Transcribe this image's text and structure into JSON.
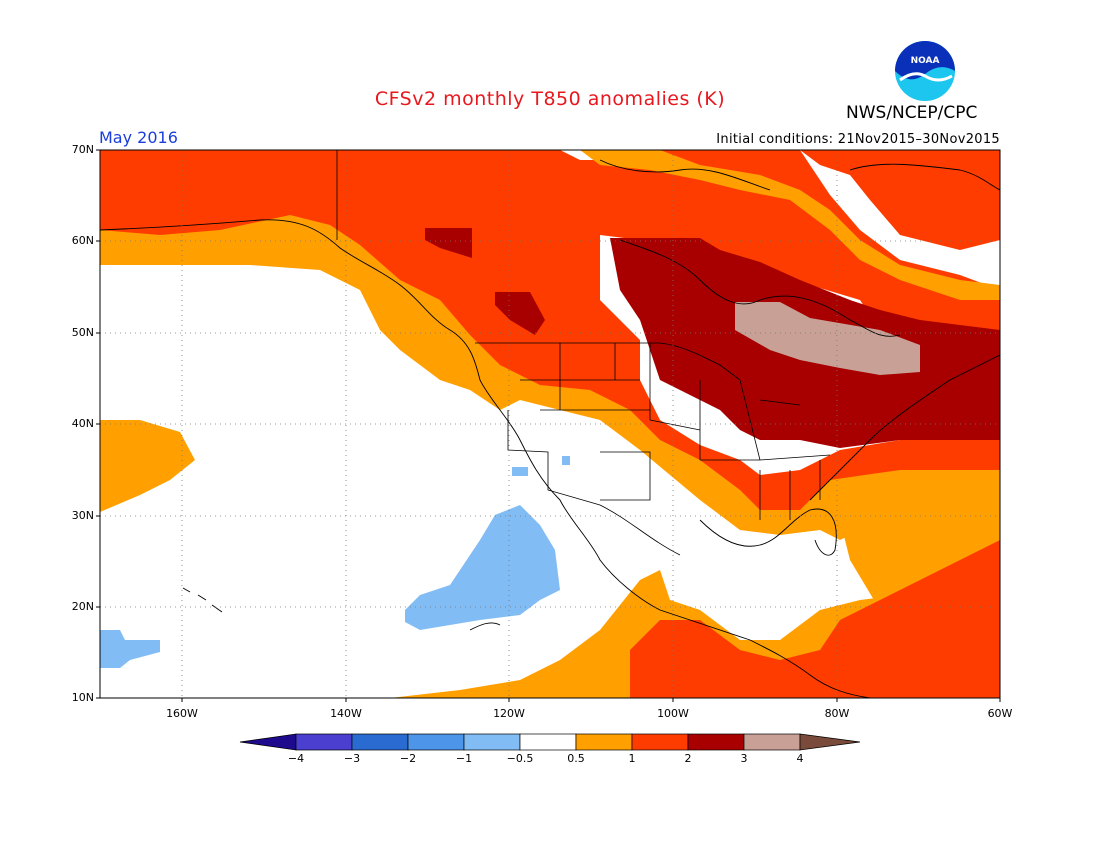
{
  "title": "CFSv2 monthly T850 anomalies (K)",
  "agency": "NWS/NCEP/CPC",
  "logo_text": "NOAA",
  "month": "May 2016",
  "initial_conditions": "Initial conditions: 21Nov2015–30Nov2015",
  "map": {
    "region": "North America and adjacent oceans",
    "lon_range": [
      -170,
      -60
    ],
    "lat_range": [
      10,
      70
    ],
    "gridlines": "dotted",
    "lat_labels": [
      "70N",
      "60N",
      "50N",
      "40N",
      "30N",
      "20N",
      "10N"
    ],
    "lon_labels": [
      "160W",
      "140W",
      "120W",
      "100W",
      "80W",
      "60W"
    ]
  },
  "colorbar": {
    "unit": "K",
    "tick_labels": [
      "−4",
      "−3",
      "−2",
      "−1",
      "−0.5",
      "0.5",
      "1",
      "2",
      "3",
      "4"
    ],
    "colors": [
      "#1d0a8c",
      "#4b3fcf",
      "#2a6bd1",
      "#4c95e8",
      "#82bcf5",
      "#ffffff",
      "#ffa000",
      "#ff3c00",
      "#a80000",
      "#c8a096",
      "#7a4a3a"
    ]
  },
  "colors": {
    "title": "#e8181e",
    "month": "#1a3ddc"
  }
}
